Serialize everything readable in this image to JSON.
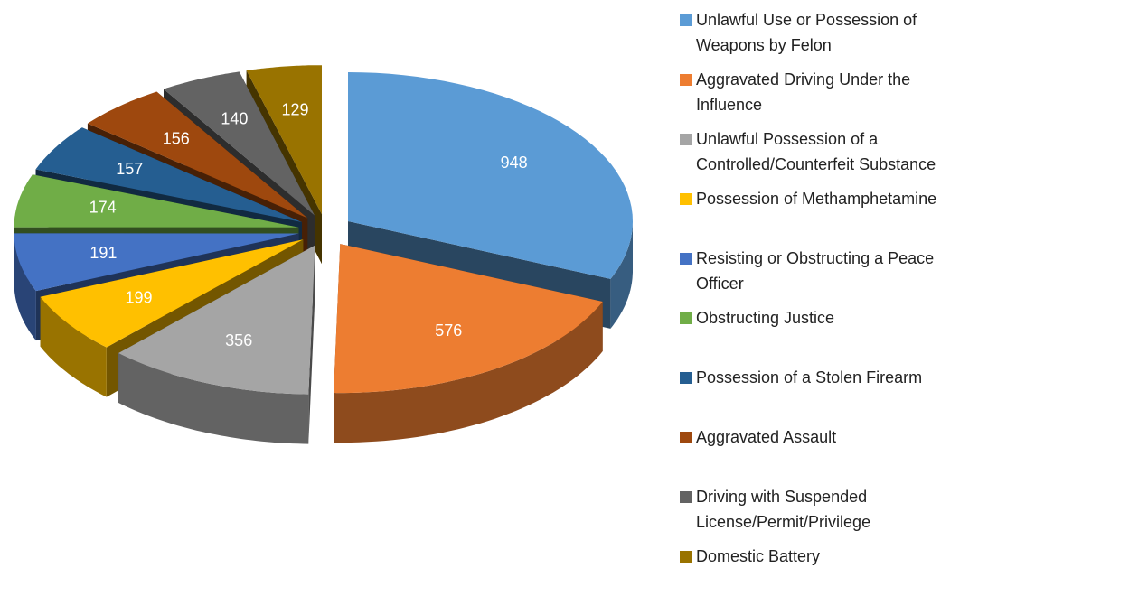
{
  "chart_data": {
    "type": "pie",
    "categories": [
      "Unlawful Use or Possession of Weapons by Felon",
      "Aggravated Driving Under the Influence",
      "Unlawful Possession of a Controlled/Counterfeit Substance",
      "Possession of Methamphetamine",
      "Resisting or Obstructing a Peace Officer",
      "Obstructing Justice",
      "Possession of a Stolen Firearm",
      "Aggravated Assault",
      "Driving with Suspended License/Permit/Privilege",
      "Domestic Battery"
    ],
    "values": [
      948,
      576,
      356,
      199,
      191,
      174,
      157,
      156,
      140,
      129
    ],
    "colors": [
      "#5b9bd5",
      "#ed7d31",
      "#a5a5a5",
      "#ffc000",
      "#4472c4",
      "#70ad47",
      "#255e91",
      "#9e480e",
      "#636363",
      "#997300"
    ],
    "legend": "right"
  }
}
